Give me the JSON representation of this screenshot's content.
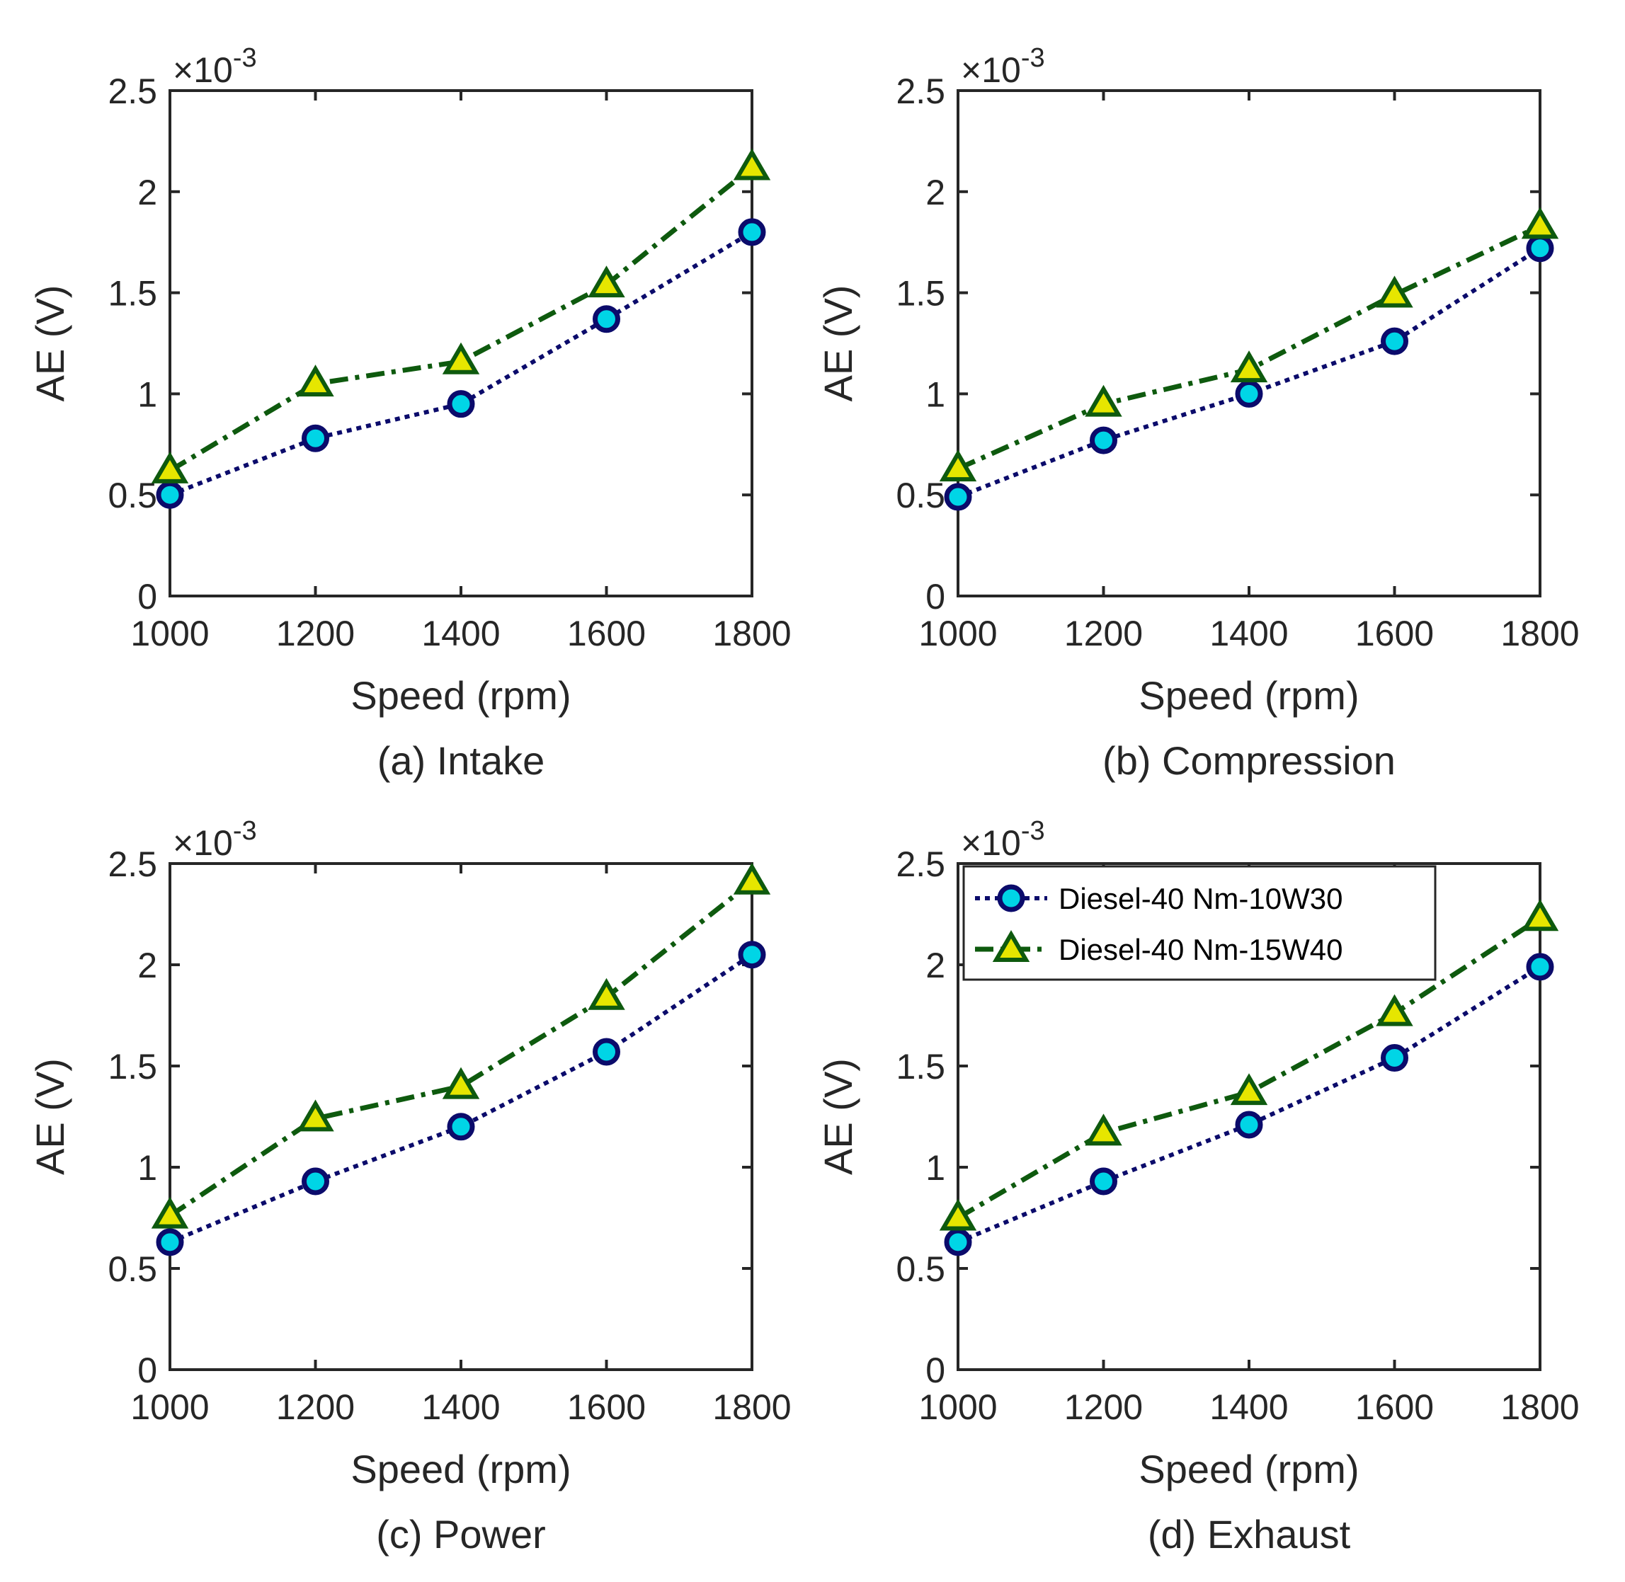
{
  "colors": {
    "series1_line": "#0b0b6b",
    "series1_marker": "#00d5e6",
    "series2_line": "#0e5a0e",
    "series2_marker": "#e6e600",
    "axis": "#262626"
  },
  "chart_data": [
    {
      "type": "line",
      "caption": "(a) Intake",
      "xlabel": "Speed (rpm)",
      "ylabel": "AE (V)",
      "exponent_label": "×10",
      "exponent_power": "-3",
      "xlim": [
        1000,
        1800
      ],
      "ylim": [
        0,
        2.5
      ],
      "xticks": [
        "1000",
        "1200",
        "1400",
        "1600",
        "1800"
      ],
      "yticks": [
        "0",
        "0.5",
        "1",
        "1.5",
        "2",
        "2.5"
      ],
      "x": [
        1000,
        1200,
        1400,
        1600,
        1800
      ],
      "series": [
        {
          "values": [
            0.5,
            0.78,
            0.95,
            1.37,
            1.8
          ]
        },
        {
          "values": [
            0.62,
            1.05,
            1.16,
            1.54,
            2.12
          ]
        }
      ]
    },
    {
      "type": "line",
      "caption": "(b) Compression",
      "xlabel": "Speed (rpm)",
      "ylabel": "AE (V)",
      "exponent_label": "×10",
      "exponent_power": "-3",
      "xlim": [
        1000,
        1800
      ],
      "ylim": [
        0,
        2.5
      ],
      "xticks": [
        "1000",
        "1200",
        "1400",
        "1600",
        "1800"
      ],
      "yticks": [
        "0",
        "0.5",
        "1",
        "1.5",
        "2",
        "2.5"
      ],
      "x": [
        1000,
        1200,
        1400,
        1600,
        1800
      ],
      "series": [
        {
          "values": [
            0.49,
            0.77,
            1.0,
            1.26,
            1.72
          ]
        },
        {
          "values": [
            0.63,
            0.95,
            1.12,
            1.49,
            1.83
          ]
        }
      ]
    },
    {
      "type": "line",
      "caption": "(c) Power",
      "xlabel": "Speed (rpm)",
      "ylabel": "AE (V)",
      "exponent_label": "×10",
      "exponent_power": "-3",
      "xlim": [
        1000,
        1800
      ],
      "ylim": [
        0,
        2.5
      ],
      "xticks": [
        "1000",
        "1200",
        "1400",
        "1600",
        "1800"
      ],
      "yticks": [
        "0",
        "0.5",
        "1",
        "1.5",
        "2",
        "2.5"
      ],
      "x": [
        1000,
        1200,
        1400,
        1600,
        1800
      ],
      "series": [
        {
          "values": [
            0.63,
            0.93,
            1.2,
            1.57,
            2.05
          ]
        },
        {
          "values": [
            0.76,
            1.24,
            1.4,
            1.84,
            2.41
          ]
        }
      ]
    },
    {
      "type": "line",
      "caption": "(d) Exhaust",
      "xlabel": "Speed (rpm)",
      "ylabel": "AE (V)",
      "exponent_label": "×10",
      "exponent_power": "-3",
      "xlim": [
        1000,
        1800
      ],
      "ylim": [
        0,
        2.5
      ],
      "xticks": [
        "1000",
        "1200",
        "1400",
        "1600",
        "1800"
      ],
      "yticks": [
        "0",
        "0.5",
        "1",
        "1.5",
        "2",
        "2.5"
      ],
      "x": [
        1000,
        1200,
        1400,
        1600,
        1800
      ],
      "legend": "top-left",
      "series": [
        {
          "name": "Diesel-40 Nm-10W30",
          "values": [
            0.63,
            0.93,
            1.21,
            1.54,
            1.99
          ]
        },
        {
          "name": "Diesel-40 Nm-15W40",
          "values": [
            0.75,
            1.17,
            1.37,
            1.76,
            2.23
          ]
        }
      ]
    }
  ]
}
